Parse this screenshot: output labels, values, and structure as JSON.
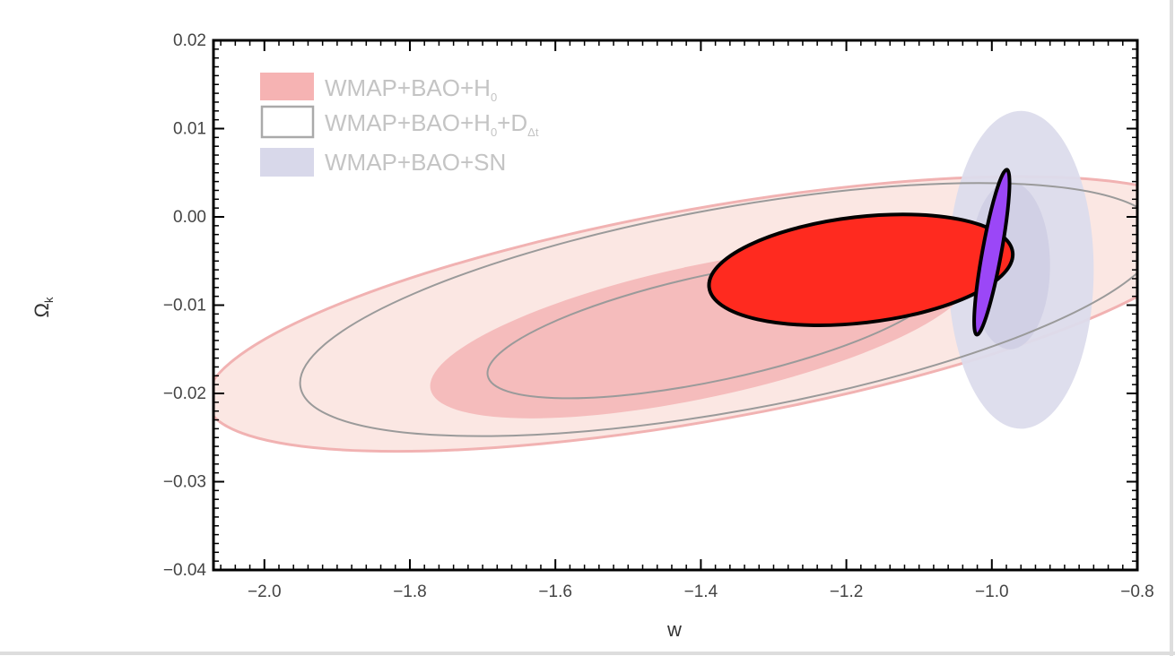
{
  "chart_data": {
    "type": "contour",
    "title": "",
    "xlabel": "w",
    "ylabel": "Ω_k",
    "xlim": [
      -2.07,
      -0.8
    ],
    "ylim": [
      -0.04,
      0.02
    ],
    "xticks": [
      -2.0,
      -1.8,
      -1.6,
      -1.4,
      -1.2,
      -1.0,
      -0.8
    ],
    "xtick_labels": [
      "−2.0",
      "−1.8",
      "−1.6",
      "−1.4",
      "−1.2",
      "−1.0",
      "−0.8"
    ],
    "yticks": [
      -0.04,
      -0.03,
      -0.02,
      -0.01,
      0.0,
      0.01,
      0.02
    ],
    "ytick_labels": [
      "−0.04",
      "−0.03",
      "−0.02",
      "−0.01",
      "0.00",
      "0.01",
      "0.02"
    ],
    "legend_position": "top-left",
    "legend": [
      {
        "key": "h0",
        "label": "WMAP+BAO+H",
        "sub": "0",
        "style": "filled",
        "color": "#f6b3b3"
      },
      {
        "key": "h0dz",
        "label": "WMAP+BAO+H",
        "sub": "0",
        "label2": "+D",
        "sub2": "Δt",
        "style": "outline",
        "color": "#aaaaaa"
      },
      {
        "key": "sn",
        "label": "WMAP+BAO+SN",
        "style": "filled",
        "color": "#d8d8ea"
      }
    ],
    "contours": [
      {
        "name": "WMAP+BAO+H0 95%",
        "cx": -1.39,
        "cy": -0.011,
        "rx": 0.7,
        "ry": 0.012,
        "angle": 0.0147,
        "fill": "#fbe7e3",
        "stroke": "#f1b2b2",
        "stroke_width": 3
      },
      {
        "name": "WMAP+BAO+SN 95%",
        "cx": -0.96,
        "cy": -0.006,
        "rx": 0.1,
        "ry": 0.018,
        "angle": 0.0,
        "fill": "#dcdcec",
        "stroke": "none",
        "stroke_width": 0,
        "opacity": 0.95
      },
      {
        "name": "WMAP+BAO+SN 68%",
        "cx": -0.975,
        "cy": -0.0055,
        "rx": 0.055,
        "ry": 0.0095,
        "angle": 0.0,
        "fill": "#cdcde3",
        "stroke": "none",
        "stroke_width": 0,
        "opacity": 0.8
      },
      {
        "name": "WMAP+BAO+H0+DΔt 95%",
        "cx": -1.36,
        "cy": -0.0105,
        "rx": 0.6,
        "ry": 0.0115,
        "angle": 0.0149,
        "fill": "none",
        "stroke": "#9a9a9a",
        "stroke_width": 2
      },
      {
        "name": "WMAP+BAO+H0 68%",
        "cx": -1.4,
        "cy": -0.013,
        "rx": 0.38,
        "ry": 0.0075,
        "angle": 0.0176,
        "fill": "#f5bcbc",
        "stroke": "none",
        "stroke_width": 0
      },
      {
        "name": "WMAP+BAO+H0+DΔt 68%",
        "cx": -1.38,
        "cy": -0.0125,
        "rx": 0.32,
        "ry": 0.006,
        "angle": 0.0176,
        "fill": "none",
        "stroke": "#9a9a9a",
        "stroke_width": 2
      },
      {
        "name": "Red highlight ellipse",
        "cx": -1.18,
        "cy": -0.006,
        "rx": 0.21,
        "ry": 0.006,
        "angle": 0.0095,
        "fill": "#ff2a1f",
        "stroke": "#000000",
        "stroke_width": 4
      },
      {
        "name": "Purple highlight ellipse",
        "cx": -1.0,
        "cy": -0.004,
        "rx": 0.013,
        "ry": 0.0095,
        "angle": -0.015,
        "fill": "#9b47f7",
        "stroke": "#000000",
        "stroke_width": 4
      }
    ]
  }
}
